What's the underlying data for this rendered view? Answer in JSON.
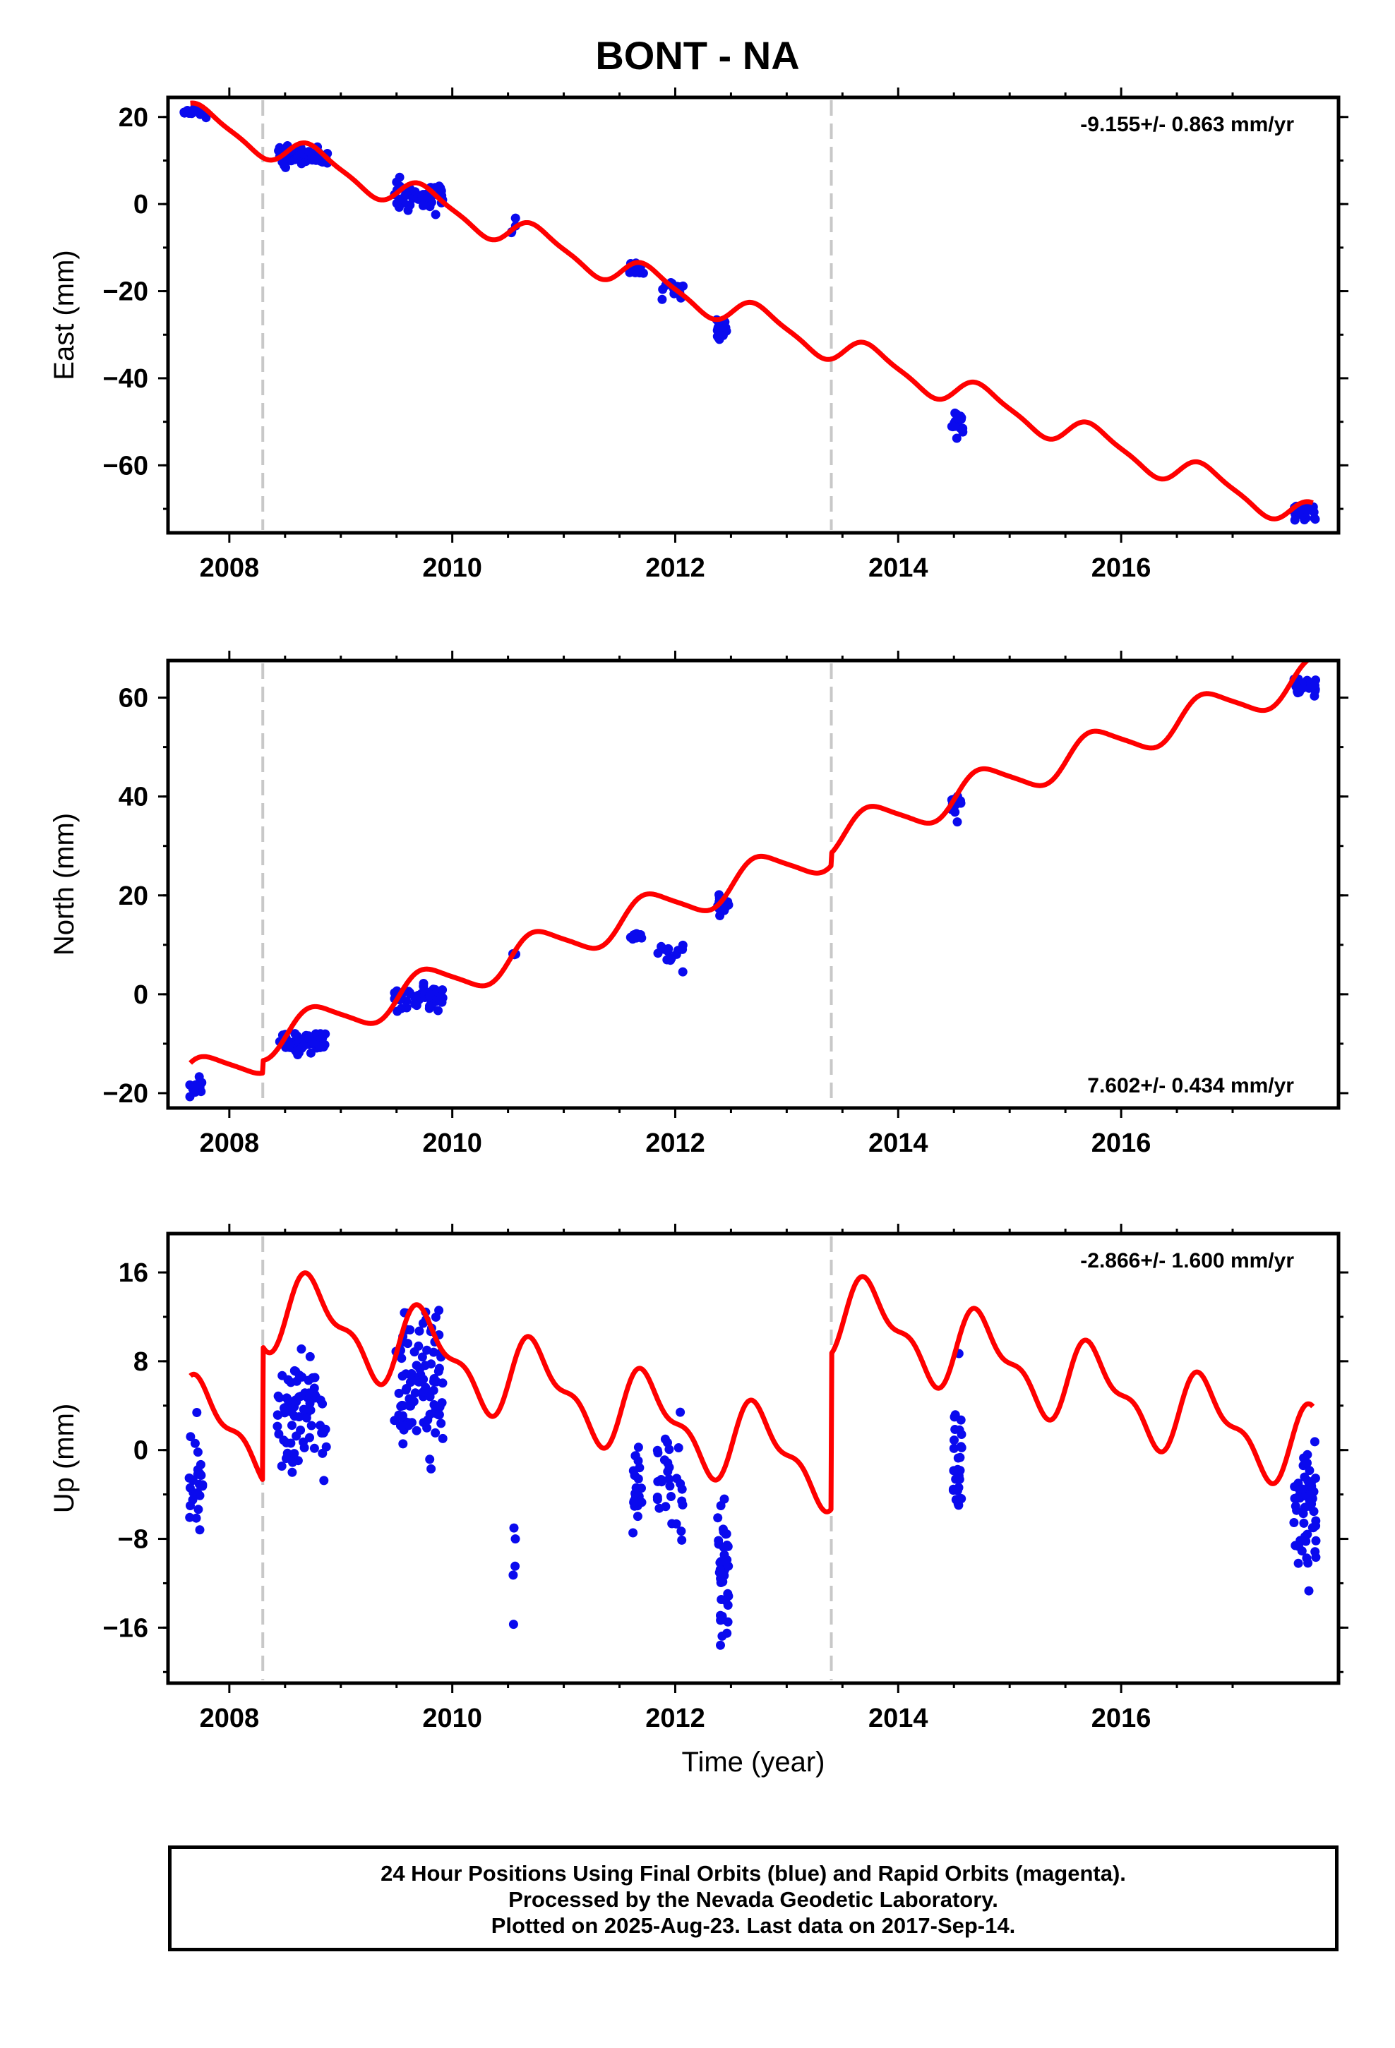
{
  "title": "BONT - NA",
  "colors": {
    "data": "#0a0aee",
    "model": "#ff0000",
    "offset": "#c8c8c8",
    "frame": "#000000"
  },
  "footer": {
    "line1": "24 Hour Positions Using Final Orbits (blue) and Rapid Orbits (magenta).",
    "line2": "Processed by the Nevada Geodetic Laboratory.",
    "line3": "Plotted on 2025-Aug-23. Last data on 2017-Sep-14."
  },
  "chart_data": [
    {
      "type": "scatter",
      "ylabel": "East (mm)",
      "xlabel": "",
      "rate": -9.155,
      "rate_text": "-9.155+/- 0.863 mm/yr",
      "rate_position": "top-right",
      "xlim": [
        2007.45,
        2017.95
      ],
      "ylim": [
        -75.5,
        24.5
      ],
      "xticks": [
        2008,
        2010,
        2012,
        2014,
        2016
      ],
      "yticks": [
        20,
        0,
        -20,
        -40,
        -60
      ],
      "offsets": [
        2008.3,
        2013.4
      ],
      "model": {
        "intercept": 20.5,
        "slope": -9.155,
        "annual_amp": 3.2,
        "semiannual_amp": 0.8,
        "jumps": []
      },
      "clusters": [
        {
          "center": 2007.7,
          "width": 0.12,
          "y": 21.0,
          "spread": 1.4,
          "count": 12
        },
        {
          "center": 2008.66,
          "width": 0.22,
          "y": 11.2,
          "spread": 1.6,
          "count": 48
        },
        {
          "center": 2009.7,
          "width": 0.22,
          "y": 2.0,
          "spread": 1.8,
          "count": 55
        },
        {
          "center": 2010.55,
          "width": 0.02,
          "y": -5.5,
          "spread": 1.8,
          "count": 4
        },
        {
          "center": 2011.65,
          "width": 0.07,
          "y": -14.8,
          "spread": 1.0,
          "count": 10
        },
        {
          "center": 2011.95,
          "width": 0.12,
          "y": -19.8,
          "spread": 1.6,
          "count": 14
        },
        {
          "center": 2012.42,
          "width": 0.06,
          "y": -29.0,
          "spread": 1.6,
          "count": 22
        },
        {
          "center": 2014.53,
          "width": 0.05,
          "y": -50.5,
          "spread": 2.2,
          "count": 18
        },
        {
          "center": 2017.65,
          "width": 0.1,
          "y": -70.2,
          "spread": 1.6,
          "count": 30
        }
      ]
    },
    {
      "type": "scatter",
      "ylabel": "North (mm)",
      "xlabel": "",
      "rate": 7.602,
      "rate_text": "7.602+/- 0.434 mm/yr",
      "rate_position": "bottom-right",
      "xlim": [
        2007.45,
        2017.95
      ],
      "ylim": [
        -23,
        67.5
      ],
      "xticks": [
        2008,
        2010,
        2012,
        2014,
        2016
      ],
      "yticks": [
        60,
        40,
        20,
        0,
        -20
      ],
      "offsets": [
        2008.3,
        2013.4
      ],
      "model": {
        "intercept": -17.5,
        "slope": 7.602,
        "annual_amp": 3.6,
        "semiannual_amp": 0.6,
        "jumps": [
          {
            "at": 2008.3,
            "size": 2.5
          },
          {
            "at": 2013.4,
            "size": 2.5
          }
        ]
      },
      "clusters": [
        {
          "center": 2007.7,
          "width": 0.06,
          "y": -18.5,
          "spread": 1.6,
          "count": 12
        },
        {
          "center": 2008.65,
          "width": 0.22,
          "y": -9.5,
          "spread": 1.8,
          "count": 55
        },
        {
          "center": 2009.7,
          "width": 0.22,
          "y": -0.8,
          "spread": 1.8,
          "count": 55
        },
        {
          "center": 2010.55,
          "width": 0.02,
          "y": 8.0,
          "spread": 0.5,
          "count": 4
        },
        {
          "center": 2011.65,
          "width": 0.05,
          "y": 11.8,
          "spread": 0.9,
          "count": 10
        },
        {
          "center": 2011.95,
          "width": 0.12,
          "y": 8.5,
          "spread": 1.6,
          "count": 14
        },
        {
          "center": 2012.43,
          "width": 0.05,
          "y": 18.5,
          "spread": 1.4,
          "count": 16
        },
        {
          "center": 2014.53,
          "width": 0.05,
          "y": 39.0,
          "spread": 1.8,
          "count": 16
        },
        {
          "center": 2017.65,
          "width": 0.1,
          "y": 62.5,
          "spread": 1.2,
          "count": 30
        }
      ]
    },
    {
      "type": "scatter",
      "ylabel": "Up (mm)",
      "xlabel": "Time (year)",
      "rate": -2.866,
      "rate_text": "-2.866+/- 1.600 mm/yr",
      "rate_position": "top-right",
      "xlim": [
        2007.45,
        2017.95
      ],
      "ylim": [
        -21,
        19.5
      ],
      "xticks": [
        2008,
        2010,
        2012,
        2014,
        2016
      ],
      "yticks": [
        16,
        8,
        0,
        -8,
        -16
      ],
      "offsets": [
        2008.3,
        2013.4
      ],
      "model": {
        "intercept": 3.0,
        "slope": -2.866,
        "annual_amp": 3.2,
        "semiannual_amp": 1.5,
        "jumps": [
          {
            "at": 2008.3,
            "size": 12.0
          },
          {
            "at": 2013.4,
            "size": 14.0
          }
        ]
      },
      "clusters": [
        {
          "center": 2007.7,
          "width": 0.06,
          "y": -2.5,
          "spread": 4.0,
          "count": 24
        },
        {
          "center": 2008.65,
          "width": 0.22,
          "y": 3.5,
          "spread": 3.8,
          "count": 80
        },
        {
          "center": 2009.7,
          "width": 0.22,
          "y": 6.0,
          "spread": 4.8,
          "count": 95
        },
        {
          "center": 2010.55,
          "width": 0.02,
          "y": -13.0,
          "spread": 5.0,
          "count": 5
        },
        {
          "center": 2011.65,
          "width": 0.05,
          "y": -3.5,
          "spread": 3.0,
          "count": 22
        },
        {
          "center": 2011.95,
          "width": 0.12,
          "y": -3.0,
          "spread": 3.5,
          "count": 30
        },
        {
          "center": 2012.43,
          "width": 0.05,
          "y": -10.5,
          "spread": 4.5,
          "count": 40
        },
        {
          "center": 2014.53,
          "width": 0.04,
          "y": -1.0,
          "spread": 4.0,
          "count": 30
        },
        {
          "center": 2017.65,
          "width": 0.1,
          "y": -5.5,
          "spread": 3.8,
          "count": 55
        }
      ]
    }
  ]
}
